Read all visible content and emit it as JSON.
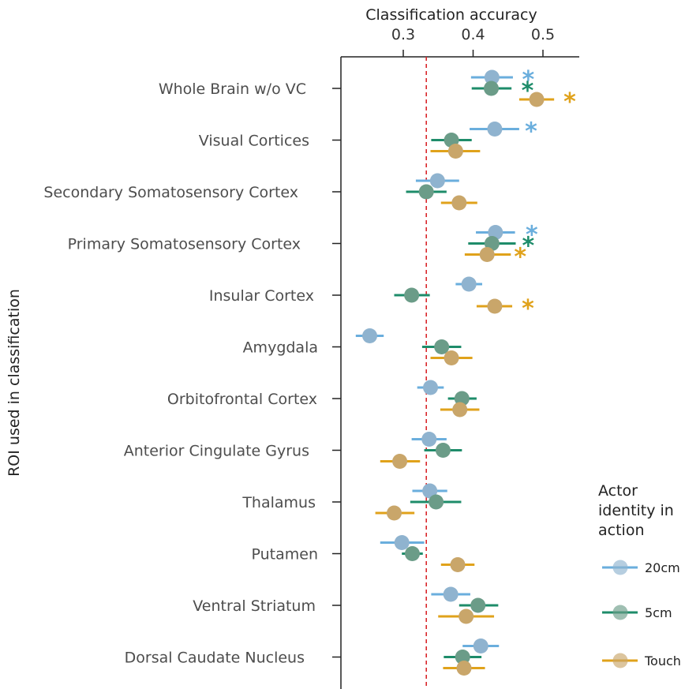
{
  "chart_data": {
    "type": "scatter",
    "title": "",
    "xlabel": "Classification accuracy",
    "ylabel": "ROI used in classification",
    "xlim": [
      0.22,
      0.56
    ],
    "x_ticks": [
      "0.3",
      "0.4",
      "0.5"
    ],
    "x_tick_values": [
      0.3,
      0.4,
      0.5
    ],
    "chance_level": 0.333,
    "categories": [
      "Whole Brain w/o VC",
      "Visual Cortices",
      "Secondary Somatosensory Cortex",
      "Primary Somatosensory Cortex",
      "Insular Cortex",
      "Amygdala",
      "Orbitofrontal Cortex",
      "Anterior Cingulate Gyrus",
      "Thalamus",
      "Putamen",
      "Ventral Striatum",
      "Dorsal Caudate Nucleus"
    ],
    "legend_title": "Actor identity in action",
    "legend_position": "bottom-right",
    "series": [
      {
        "name": "20cm",
        "color": "#6aaedd",
        "marker_color": "#8fb3cf",
        "values": [
          0.427,
          0.431,
          0.349,
          0.432,
          0.394,
          0.252,
          0.339,
          0.337,
          0.338,
          0.298,
          0.368,
          0.411
        ],
        "ci_low": [
          0.397,
          0.395,
          0.318,
          0.404,
          0.375,
          0.232,
          0.32,
          0.312,
          0.313,
          0.267,
          0.34,
          0.385
        ],
        "ci_high": [
          0.457,
          0.466,
          0.38,
          0.46,
          0.413,
          0.272,
          0.358,
          0.362,
          0.363,
          0.33,
          0.396,
          0.437
        ],
        "significant": [
          true,
          true,
          false,
          true,
          false,
          false,
          false,
          false,
          false,
          false,
          false,
          false
        ]
      },
      {
        "name": "5cm",
        "color": "#1e8c6a",
        "marker_color": "#6b9c88",
        "values": [
          0.426,
          0.369,
          0.333,
          0.427,
          0.312,
          0.355,
          0.384,
          0.357,
          0.347,
          0.313,
          0.407,
          0.385
        ],
        "ci_low": [
          0.398,
          0.34,
          0.304,
          0.393,
          0.287,
          0.327,
          0.364,
          0.33,
          0.31,
          0.298,
          0.38,
          0.358
        ],
        "ci_high": [
          0.455,
          0.398,
          0.362,
          0.461,
          0.338,
          0.383,
          0.405,
          0.384,
          0.383,
          0.328,
          0.436,
          0.412
        ],
        "significant": [
          true,
          false,
          false,
          true,
          false,
          false,
          false,
          false,
          false,
          false,
          false,
          false
        ]
      },
      {
        "name": "Touch",
        "color": "#e0a21b",
        "marker_color": "#c9a66a",
        "values": [
          0.491,
          0.375,
          0.38,
          0.42,
          0.431,
          0.369,
          0.381,
          0.295,
          0.287,
          0.378,
          0.39,
          0.387
        ],
        "ci_low": [
          0.466,
          0.339,
          0.354,
          0.388,
          0.405,
          0.339,
          0.353,
          0.267,
          0.26,
          0.354,
          0.35,
          0.357
        ],
        "ci_high": [
          0.516,
          0.41,
          0.406,
          0.454,
          0.456,
          0.399,
          0.409,
          0.324,
          0.316,
          0.402,
          0.43,
          0.417
        ],
        "significant": [
          true,
          false,
          false,
          true,
          true,
          false,
          false,
          false,
          false,
          false,
          false,
          false
        ]
      }
    ],
    "significance_marker": "*",
    "grid": false
  }
}
